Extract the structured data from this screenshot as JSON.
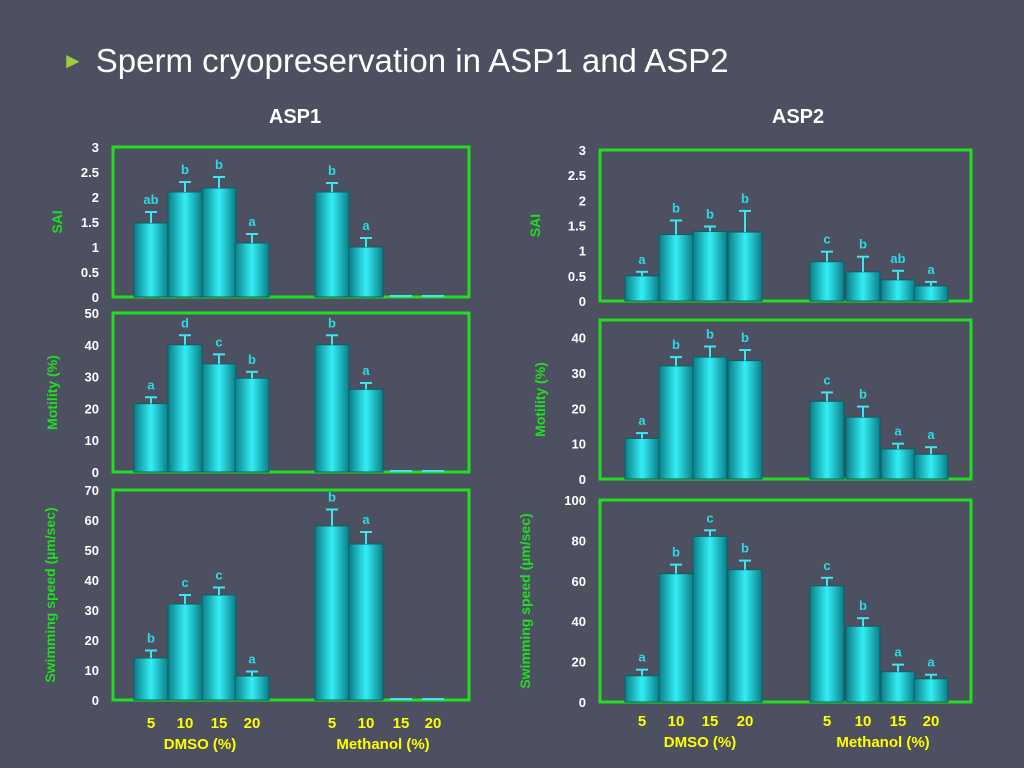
{
  "slide": {
    "bullet": "►",
    "title": "Sperm cryopreservation in ASP1 and ASP2"
  },
  "colors": {
    "background": "#4d5060",
    "frame": "#22dd22",
    "axis_label": "#22dd22",
    "tick_text": "#ffffff",
    "bar": "#14c8d0",
    "bar_letters": "#2adbe6",
    "x_text": "#ffff00",
    "group_text": "#ffff00"
  },
  "chart_data": [
    {
      "id": "asp1-sai",
      "type": "bar",
      "title": "ASP1",
      "ylabel": "SAI",
      "yticks": [
        "0",
        "0.5",
        "1",
        "1.5",
        "2",
        "2.5",
        "3"
      ],
      "ylim": [
        0,
        3
      ],
      "categories": [
        "DMSO 5",
        "DMSO 10",
        "DMSO 15",
        "DMSO 20",
        "Methanol 5",
        "Methanol 10",
        "Methanol 15",
        "Methanol 20"
      ],
      "values": [
        1.48,
        2.1,
        2.18,
        1.08,
        2.1,
        1.0,
        0.0,
        0.0
      ],
      "errors": [
        0.22,
        0.2,
        0.22,
        0.18,
        0.18,
        0.18,
        0,
        0
      ],
      "letters": [
        "ab",
        "b",
        "b",
        "a",
        "b",
        "a",
        "",
        ""
      ]
    },
    {
      "id": "asp1-motility",
      "type": "bar",
      "ylabel": "Motility (%)",
      "yticks": [
        "0",
        "10",
        "20",
        "30",
        "40",
        "50"
      ],
      "ylim": [
        0,
        50
      ],
      "categories": [
        "DMSO 5",
        "DMSO 10",
        "DMSO 15",
        "DMSO 20",
        "Methanol 5",
        "Methanol 10",
        "Methanol 15",
        "Methanol 20"
      ],
      "values": [
        21.5,
        40,
        34,
        29.5,
        40,
        26,
        0,
        0
      ],
      "errors": [
        2,
        3,
        3,
        2,
        3,
        2,
        0,
        0
      ],
      "letters": [
        "a",
        "d",
        "c",
        "b",
        "b",
        "a",
        "",
        ""
      ]
    },
    {
      "id": "asp1-speed",
      "type": "bar",
      "ylabel": "Swimming speed (µm/sec)",
      "yticks": [
        "0",
        "10",
        "20",
        "30",
        "40",
        "50",
        "60",
        "70"
      ],
      "ylim": [
        0,
        70
      ],
      "categories": [
        "DMSO 5",
        "DMSO 10",
        "DMSO 15",
        "DMSO 20",
        "Methanol 5",
        "Methanol 10",
        "Methanol 15",
        "Methanol 20"
      ],
      "values": [
        14,
        32,
        35,
        8,
        58,
        52,
        0,
        0
      ],
      "errors": [
        2.5,
        3,
        2.5,
        1.5,
        5.5,
        4,
        0,
        0
      ],
      "letters": [
        "b",
        "c",
        "c",
        "a",
        "b",
        "a",
        "",
        ""
      ]
    },
    {
      "id": "asp2-sai",
      "type": "bar",
      "title": "ASP2",
      "ylabel": "SAI",
      "yticks": [
        "0",
        "0.5",
        "1",
        "1.5",
        "2",
        "2.5",
        "3"
      ],
      "ylim": [
        0,
        3
      ],
      "categories": [
        "DMSO 5",
        "DMSO 10",
        "DMSO 15",
        "DMSO 20",
        "Methanol 5",
        "Methanol 10",
        "Methanol 15",
        "Methanol 20"
      ],
      "values": [
        0.5,
        1.32,
        1.38,
        1.37,
        0.78,
        0.58,
        0.42,
        0.3
      ],
      "errors": [
        0.08,
        0.28,
        0.1,
        0.42,
        0.2,
        0.3,
        0.18,
        0.08
      ],
      "letters": [
        "a",
        "b",
        "b",
        "b",
        "c",
        "b",
        "ab",
        "a"
      ]
    },
    {
      "id": "asp2-motility",
      "type": "bar",
      "ylabel": "Motility (%)",
      "yticks": [
        "0",
        "10",
        "20",
        "30",
        "40"
      ],
      "ylim": [
        0,
        45
      ],
      "categories": [
        "DMSO 5",
        "DMSO 10",
        "DMSO 15",
        "DMSO 20",
        "Methanol 5",
        "Methanol 10",
        "Methanol 15",
        "Methanol 20"
      ],
      "values": [
        11.5,
        32,
        34.5,
        33.5,
        22,
        17.5,
        8.5,
        7
      ],
      "errors": [
        1.5,
        2.5,
        3,
        3,
        2.5,
        3,
        1.5,
        2
      ],
      "letters": [
        "a",
        "b",
        "b",
        "b",
        "c",
        "b",
        "a",
        "a"
      ]
    },
    {
      "id": "asp2-speed",
      "type": "bar",
      "ylabel": "Swimming speed (µm/sec)",
      "yticks": [
        "0",
        "20",
        "40",
        "60",
        "80",
        "100"
      ],
      "ylim": [
        0,
        100
      ],
      "categories": [
        "DMSO 5",
        "DMSO 10",
        "DMSO 15",
        "DMSO 20",
        "Methanol 5",
        "Methanol 10",
        "Methanol 15",
        "Methanol 20"
      ],
      "values": [
        13,
        63.5,
        82,
        65.5,
        57.5,
        37.5,
        15,
        11.5
      ],
      "errors": [
        3,
        4.5,
        3,
        4.5,
        4,
        4,
        3.5,
        2
      ],
      "letters": [
        "a",
        "b",
        "c",
        "b",
        "c",
        "b",
        "a",
        "a"
      ]
    }
  ],
  "x_axis": {
    "asp1": {
      "ticks": [
        "5",
        "10",
        "15",
        "20",
        "5",
        "10",
        "15",
        "20"
      ],
      "groups": [
        "DMSO (%)",
        "Methanol (%)"
      ]
    },
    "asp2": {
      "ticks": [
        "5",
        "10",
        "15",
        "20",
        "5",
        "10",
        "15",
        "20"
      ],
      "groups": [
        "DMSO (%)",
        "Methanol (%)"
      ]
    }
  }
}
